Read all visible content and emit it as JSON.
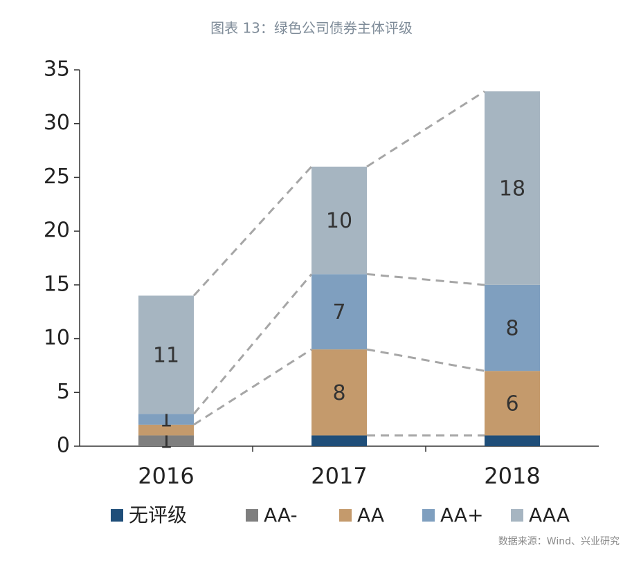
{
  "chart_data": {
    "type": "stacked_bar",
    "title": "图表 13：绿色公司债券主体评级",
    "categories": [
      "2016",
      "2017",
      "2018"
    ],
    "series": [
      {
        "name": "无评级",
        "color": "#1f4e79",
        "values": [
          0,
          1,
          1
        ],
        "value_labels": [
          null,
          null,
          null
        ]
      },
      {
        "name": "AA-",
        "color": "#7f7f7f",
        "values": [
          1,
          0,
          0
        ],
        "value_labels": [
          "1",
          null,
          null
        ]
      },
      {
        "name": "AA",
        "color": "#c49a6c",
        "values": [
          1,
          8,
          6
        ],
        "value_labels": [
          null,
          "8",
          "6"
        ]
      },
      {
        "name": "AA+",
        "color": "#7f9fbf",
        "values": [
          1,
          7,
          8
        ],
        "value_labels": [
          "1",
          "7",
          "8"
        ]
      },
      {
        "name": "AAA",
        "color": "#a6b5c1",
        "values": [
          11,
          10,
          18
        ],
        "value_labels": [
          "11",
          "10",
          "18"
        ]
      }
    ],
    "ylim": [
      0,
      35
    ],
    "yticks": [
      0,
      5,
      10,
      15,
      20,
      25,
      30,
      35
    ],
    "source": "数据来源：Wind、兴业研究"
  }
}
